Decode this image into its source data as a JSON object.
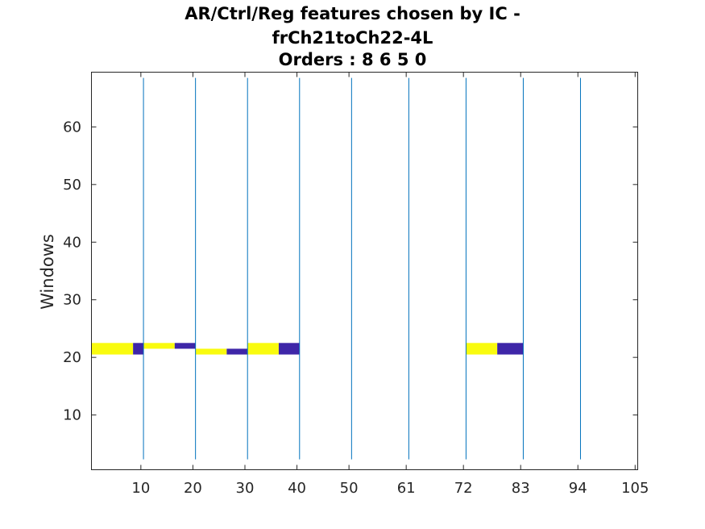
{
  "chart_data": {
    "type": "heatmap",
    "title": [
      "AR/Ctrl/Reg features chosen by IC -",
      "frCh21toCh22-4L",
      "Orders : 8 6 5 0"
    ],
    "xlabel": "",
    "ylabel": "Windows",
    "xlim": [
      0.5,
      105.5
    ],
    "ylim": [
      0.5,
      69.5
    ],
    "x_ticks": [
      10,
      20,
      30,
      40,
      50,
      61,
      72,
      83,
      94,
      105
    ],
    "x_tick_labels": [
      "10",
      "20",
      "30",
      "40",
      "50",
      "61",
      "72",
      "83",
      "94",
      "105"
    ],
    "y_ticks": [
      10,
      20,
      30,
      40,
      50,
      60
    ],
    "y_tick_labels": [
      "10",
      "20",
      "30",
      "40",
      "50",
      "60"
    ],
    "group_boundaries": [
      10.5,
      20.5,
      30.5,
      40.5,
      50.5,
      61.5,
      72.5,
      83.5,
      94.5
    ],
    "colors": {
      "high": "#f9fb0e",
      "low": "#3e26a8",
      "background": "#ffffff",
      "boundary": "#0072bd"
    },
    "cells": [
      {
        "x0": 0.5,
        "x1": 8.5,
        "y0": 20.5,
        "y1": 22.5,
        "level": "high"
      },
      {
        "x0": 8.5,
        "x1": 10.5,
        "y0": 20.5,
        "y1": 22.5,
        "level": "low"
      },
      {
        "x0": 10.5,
        "x1": 16.5,
        "y0": 21.5,
        "y1": 22.5,
        "level": "high"
      },
      {
        "x0": 16.5,
        "x1": 20.5,
        "y0": 21.5,
        "y1": 22.5,
        "level": "low"
      },
      {
        "x0": 20.5,
        "x1": 26.5,
        "y0": 20.5,
        "y1": 21.5,
        "level": "high"
      },
      {
        "x0": 26.5,
        "x1": 30.5,
        "y0": 20.5,
        "y1": 21.5,
        "level": "low"
      },
      {
        "x0": 30.5,
        "x1": 36.5,
        "y0": 20.5,
        "y1": 22.5,
        "level": "high"
      },
      {
        "x0": 36.5,
        "x1": 40.5,
        "y0": 20.5,
        "y1": 22.5,
        "level": "low"
      },
      {
        "x0": 72.5,
        "x1": 78.5,
        "y0": 20.5,
        "y1": 22.5,
        "level": "high"
      },
      {
        "x0": 78.5,
        "x1": 83.5,
        "y0": 20.5,
        "y1": 22.5,
        "level": "low"
      }
    ]
  }
}
